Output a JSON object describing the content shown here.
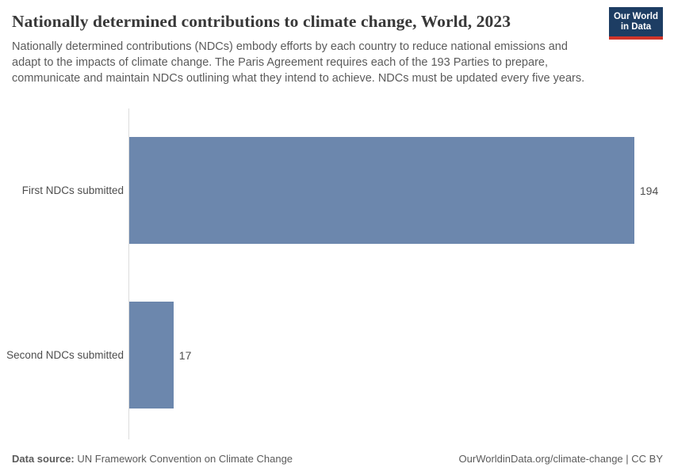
{
  "header": {
    "title": "Nationally determined contributions to climate change, World, 2023",
    "subtitle": "Nationally determined contributions (NDCs) embody efforts by each country to reduce national emissions and adapt to the impacts of climate change. The Paris Agreement requires each of the 193 Parties to prepare, communicate and maintain NDCs outlining what they intend to achieve. NDCs must be updated every five years."
  },
  "logo": {
    "line1": "Our World",
    "line2": "in Data",
    "bg_color": "#1d3d63",
    "stripe_color": "#d0352a"
  },
  "chart_data": {
    "type": "bar",
    "orientation": "horizontal",
    "title": "Nationally determined contributions to climate change, World, 2023",
    "categories": [
      "First NDCs submitted",
      "Second NDCs submitted"
    ],
    "values": [
      194,
      17
    ],
    "value_labels": [
      "194",
      "17"
    ],
    "xlabel": "",
    "ylabel": "",
    "xlim": [
      0,
      205
    ],
    "grid": false,
    "legend": "none",
    "bar_color": "#6c87ad",
    "axis_line_color": "#dcdcdc"
  },
  "footer": {
    "datasource_label": "Data source:",
    "datasource_value": " UN Framework Convention on Climate Change",
    "attribution": "OurWorldinData.org/climate-change | CC BY"
  }
}
